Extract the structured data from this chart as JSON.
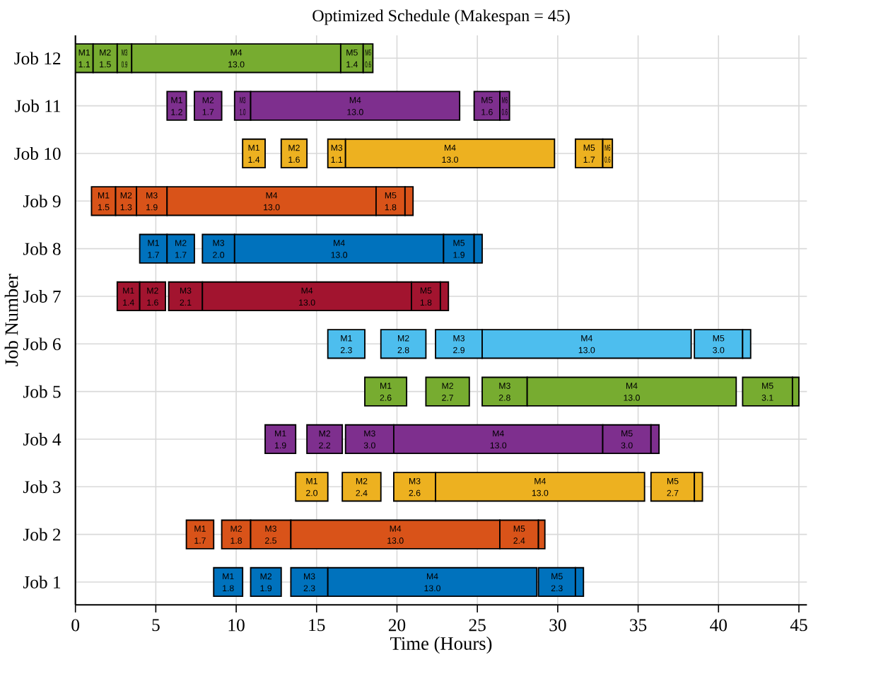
{
  "chart_data": {
    "type": "bar",
    "orientation": "horizontal",
    "title": "Optimized Schedule (Makespan = 45)",
    "xlabel": "Time (Hours)",
    "ylabel": "Job Number",
    "grid": true,
    "categories": [
      "Job 12",
      "Job 11",
      "Job 10",
      "Job 9",
      "Job 8",
      "Job 7",
      "Job 6",
      "Job 5",
      "Job 4",
      "Job 3",
      "Job 2",
      "Job 1"
    ],
    "xlim": [
      0,
      45.5
    ],
    "xticks": [
      0,
      5,
      10,
      15,
      20,
      25,
      30,
      35,
      40,
      45
    ],
    "series": [
      {
        "name": "M1",
        "base": [
          0,
          5.7,
          10.4,
          1.0,
          4.0,
          2.6,
          15.7,
          18.0,
          11.8,
          13.7,
          6.9,
          8.6
        ],
        "values": [
          1.1,
          1.2,
          1.4,
          1.5,
          1.7,
          1.4,
          2.3,
          2.6,
          1.9,
          2.0,
          1.7,
          1.8
        ],
        "value_labels": [
          "1.1",
          "1.2",
          "1.4",
          "1.5",
          "1.7",
          "1.4",
          "2.3",
          "2.6",
          "1.9",
          "2.0",
          "1.7",
          "1.8"
        ],
        "colors": [
          "#77ac30",
          "#7e2f8e",
          "#edb120",
          "#d95319",
          "#0072bd",
          "#a2142f",
          "#4dbeee",
          "#77ac30",
          "#7e2f8e",
          "#edb120",
          "#d95319",
          "#0072bd"
        ]
      },
      {
        "name": "M2",
        "base": [
          1.1,
          7.4,
          12.8,
          2.5,
          5.7,
          4.0,
          19.0,
          21.8,
          14.4,
          16.6,
          9.1,
          10.9
        ],
        "values": [
          1.5,
          1.7,
          1.6,
          1.3,
          1.7,
          1.6,
          2.8,
          2.7,
          2.2,
          2.4,
          1.8,
          1.9
        ],
        "value_labels": [
          "1.5",
          "1.7",
          "1.6",
          "1.3",
          "1.7",
          "1.6",
          "2.8",
          "2.7",
          "2.2",
          "2.4",
          "1.8",
          "1.9"
        ],
        "colors": [
          "#77ac30",
          "#7e2f8e",
          "#edb120",
          "#d95319",
          "#0072bd",
          "#a2142f",
          "#4dbeee",
          "#77ac30",
          "#7e2f8e",
          "#edb120",
          "#d95319",
          "#0072bd"
        ]
      },
      {
        "name": "M3",
        "base": [
          2.6,
          9.9,
          15.7,
          3.8,
          7.9,
          5.8,
          22.4,
          25.3,
          16.8,
          19.8,
          10.9,
          13.4
        ],
        "values": [
          0.9,
          1.0,
          1.1,
          1.9,
          2.0,
          2.1,
          2.9,
          2.8,
          3.0,
          2.6,
          2.5,
          2.3
        ],
        "value_labels": [
          "0.9",
          "1.0",
          "1.1",
          "1.9",
          "2.0",
          "2.1",
          "2.9",
          "2.8",
          "3.0",
          "2.6",
          "2.5",
          "2.3"
        ],
        "colors": [
          "#77ac30",
          "#7e2f8e",
          "#edb120",
          "#d95319",
          "#0072bd",
          "#a2142f",
          "#4dbeee",
          "#77ac30",
          "#7e2f8e",
          "#edb120",
          "#d95319",
          "#0072bd"
        ]
      },
      {
        "name": "M4",
        "base": [
          3.5,
          10.9,
          16.8,
          5.7,
          9.9,
          7.9,
          25.3,
          28.1,
          19.8,
          22.4,
          13.4,
          15.7
        ],
        "values": [
          13.0,
          13.0,
          13.0,
          13.0,
          13.0,
          13.0,
          13.0,
          13.0,
          13.0,
          13.0,
          13.0,
          13.0
        ],
        "value_labels": [
          "13.0",
          "13.0",
          "13.0",
          "13.0",
          "13.0",
          "13.0",
          "13.0",
          "13.0",
          "13.0",
          "13.0",
          "13.0",
          "13.0"
        ],
        "colors": [
          "#77ac30",
          "#7e2f8e",
          "#edb120",
          "#d95319",
          "#0072bd",
          "#a2142f",
          "#4dbeee",
          "#77ac30",
          "#7e2f8e",
          "#edb120",
          "#d95319",
          "#0072bd"
        ]
      },
      {
        "name": "M5",
        "base": [
          16.5,
          24.8,
          31.1,
          18.7,
          22.9,
          20.9,
          38.5,
          41.5,
          32.8,
          35.8,
          26.4,
          28.8
        ],
        "values": [
          1.4,
          1.6,
          1.7,
          1.8,
          1.9,
          1.8,
          3.0,
          3.1,
          3.0,
          2.7,
          2.4,
          2.3
        ],
        "value_labels": [
          "1.4",
          "1.6",
          "1.7",
          "1.8",
          "1.9",
          "1.8",
          "3.0",
          "3.1",
          "3.0",
          "2.7",
          "2.4",
          "2.3"
        ],
        "colors": [
          "#77ac30",
          "#7e2f8e",
          "#edb120",
          "#d95319",
          "#0072bd",
          "#a2142f",
          "#4dbeee",
          "#77ac30",
          "#7e2f8e",
          "#edb120",
          "#d95319",
          "#0072bd"
        ]
      },
      {
        "name": "M6",
        "base": [
          17.9,
          26.4,
          32.8,
          20.5,
          24.8,
          22.7,
          41.5,
          44.6,
          35.8,
          38.5,
          28.8,
          31.1
        ],
        "values": [
          0.6,
          0.6,
          0.6,
          0.5,
          0.5,
          0.5,
          0.5,
          0.4,
          0.5,
          0.5,
          0.4,
          0.5
        ],
        "value_labels": [
          "0.6",
          "0.6",
          "0.6",
          null,
          null,
          null,
          null,
          null,
          null,
          null,
          null,
          null
        ],
        "colors": [
          "#77ac30",
          "#7e2f8e",
          "#edb120",
          "#d95319",
          "#0072bd",
          "#a2142f",
          "#4dbeee",
          "#77ac30",
          "#7e2f8e",
          "#edb120",
          "#d95319",
          "#0072bd"
        ]
      }
    ]
  }
}
